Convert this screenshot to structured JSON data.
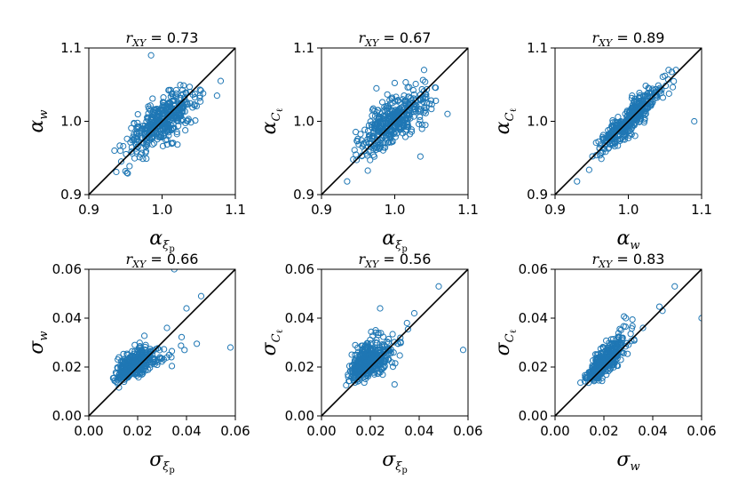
{
  "colors": {
    "marker": "#1f77b4",
    "axes": "#000000"
  },
  "chart_data": [
    {
      "type": "scatter",
      "title_var": "r",
      "title_sub": "XY",
      "title_value": "0.73",
      "xlabel": {
        "sym": "α",
        "sub": "ξ",
        "subsub": "p"
      },
      "ylabel": {
        "sym": "α",
        "sub": "w",
        "subsub": ""
      },
      "xlim": [
        0.9,
        1.1
      ],
      "ylim": [
        0.9,
        1.1
      ],
      "xticks": [
        "0.9",
        "1.0",
        "1.1"
      ],
      "yticks": [
        "0.9",
        "1.0",
        "1.1"
      ],
      "reference_line": "y = x",
      "cloud": {
        "cx": 1.0,
        "cy": 1.0,
        "sx": 0.024,
        "sy": 0.021,
        "r": 0.73,
        "n": 400
      },
      "outliers": [
        [
          0.935,
          0.96
        ],
        [
          1.08,
          1.055
        ],
        [
          0.985,
          1.09
        ],
        [
          1.075,
          1.035
        ],
        [
          0.95,
          0.932
        ]
      ]
    },
    {
      "type": "scatter",
      "title_var": "r",
      "title_sub": "XY",
      "title_value": "0.67",
      "xlabel": {
        "sym": "α",
        "sub": "ξ",
        "subsub": "p"
      },
      "ylabel": {
        "sym": "α",
        "sub": "C",
        "subsub": "ℓ"
      },
      "xlim": [
        0.9,
        1.1
      ],
      "ylim": [
        0.9,
        1.1
      ],
      "xticks": [
        "0.9",
        "1.0",
        "1.1"
      ],
      "yticks": [
        "0.9",
        "1.0",
        "1.1"
      ],
      "reference_line": "y = x",
      "cloud": {
        "cx": 1.0,
        "cy": 1.0,
        "sx": 0.023,
        "sy": 0.022,
        "r": 0.67,
        "n": 400
      },
      "outliers": [
        [
          0.935,
          0.918
        ],
        [
          1.072,
          1.01
        ],
        [
          1.04,
          1.07
        ],
        [
          1.035,
          0.952
        ],
        [
          0.975,
          1.045
        ]
      ]
    },
    {
      "type": "scatter",
      "title_var": "r",
      "title_sub": "XY",
      "title_value": "0.89",
      "xlabel": {
        "sym": "α",
        "sub": "w",
        "subsub": ""
      },
      "ylabel": {
        "sym": "α",
        "sub": "C",
        "subsub": "ℓ"
      },
      "xlim": [
        0.9,
        1.1
      ],
      "ylim": [
        0.9,
        1.1
      ],
      "xticks": [
        "0.9",
        "1.0",
        "1.1"
      ],
      "yticks": [
        "0.9",
        "1.0",
        "1.1"
      ],
      "reference_line": "y = x",
      "cloud": {
        "cx": 1.0,
        "cy": 1.0,
        "sx": 0.021,
        "sy": 0.022,
        "r": 0.89,
        "n": 400
      },
      "outliers": [
        [
          0.93,
          0.918
        ],
        [
          1.09,
          1.0
        ],
        [
          1.065,
          1.07
        ],
        [
          1.05,
          1.062
        ],
        [
          1.055,
          1.07
        ]
      ]
    },
    {
      "type": "scatter",
      "title_var": "r",
      "title_sub": "XY",
      "title_value": "0.66",
      "xlabel": {
        "sym": "σ",
        "sub": "ξ",
        "subsub": "p"
      },
      "ylabel": {
        "sym": "σ",
        "sub": "w",
        "subsub": ""
      },
      "xlim": [
        0.0,
        0.06
      ],
      "ylim": [
        0.0,
        0.06
      ],
      "xticks": [
        "0.00",
        "0.02",
        "0.04",
        "0.06"
      ],
      "yticks": [
        "0.00",
        "0.02",
        "0.04",
        "0.06"
      ],
      "reference_line": "y = x",
      "cloud": {
        "cx": 0.019,
        "cy": 0.021,
        "sx": 0.0045,
        "sy": 0.0035,
        "r": 0.66,
        "n": 400,
        "lognormal": true
      },
      "outliers": [
        [
          0.058,
          0.028
        ],
        [
          0.046,
          0.049
        ],
        [
          0.035,
          0.06
        ],
        [
          0.04,
          0.044
        ],
        [
          0.032,
          0.036
        ]
      ]
    },
    {
      "type": "scatter",
      "title_var": "r",
      "title_sub": "XY",
      "title_value": "0.56",
      "xlabel": {
        "sym": "σ",
        "sub": "ξ",
        "subsub": "p"
      },
      "ylabel": {
        "sym": "σ",
        "sub": "C",
        "subsub": "ℓ"
      },
      "xlim": [
        0.0,
        0.06
      ],
      "ylim": [
        0.0,
        0.06
      ],
      "xticks": [
        "0.00",
        "0.02",
        "0.04",
        "0.06"
      ],
      "yticks": [
        "0.00",
        "0.02",
        "0.04",
        "0.06"
      ],
      "reference_line": "y = x",
      "cloud": {
        "cx": 0.019,
        "cy": 0.022,
        "sx": 0.0045,
        "sy": 0.0045,
        "r": 0.56,
        "n": 400,
        "lognormal": true
      },
      "outliers": [
        [
          0.058,
          0.027
        ],
        [
          0.048,
          0.053
        ],
        [
          0.038,
          0.042
        ],
        [
          0.035,
          0.038
        ],
        [
          0.024,
          0.044
        ]
      ]
    },
    {
      "type": "scatter",
      "title_var": "r",
      "title_sub": "XY",
      "title_value": "0.83",
      "xlabel": {
        "sym": "σ",
        "sub": "w",
        "subsub": ""
      },
      "ylabel": {
        "sym": "σ",
        "sub": "C",
        "subsub": "ℓ"
      },
      "xlim": [
        0.0,
        0.06
      ],
      "ylim": [
        0.0,
        0.06
      ],
      "xticks": [
        "0.00",
        "0.02",
        "0.04",
        "0.06"
      ],
      "yticks": [
        "0.00",
        "0.02",
        "0.04",
        "0.06"
      ],
      "reference_line": "y = x",
      "cloud": {
        "cx": 0.02,
        "cy": 0.022,
        "sx": 0.004,
        "sy": 0.0045,
        "r": 0.83,
        "n": 400,
        "lognormal": true
      },
      "outliers": [
        [
          0.06,
          0.04
        ],
        [
          0.049,
          0.053
        ],
        [
          0.044,
          0.043
        ],
        [
          0.029,
          0.04
        ],
        [
          0.036,
          0.036
        ]
      ]
    }
  ]
}
